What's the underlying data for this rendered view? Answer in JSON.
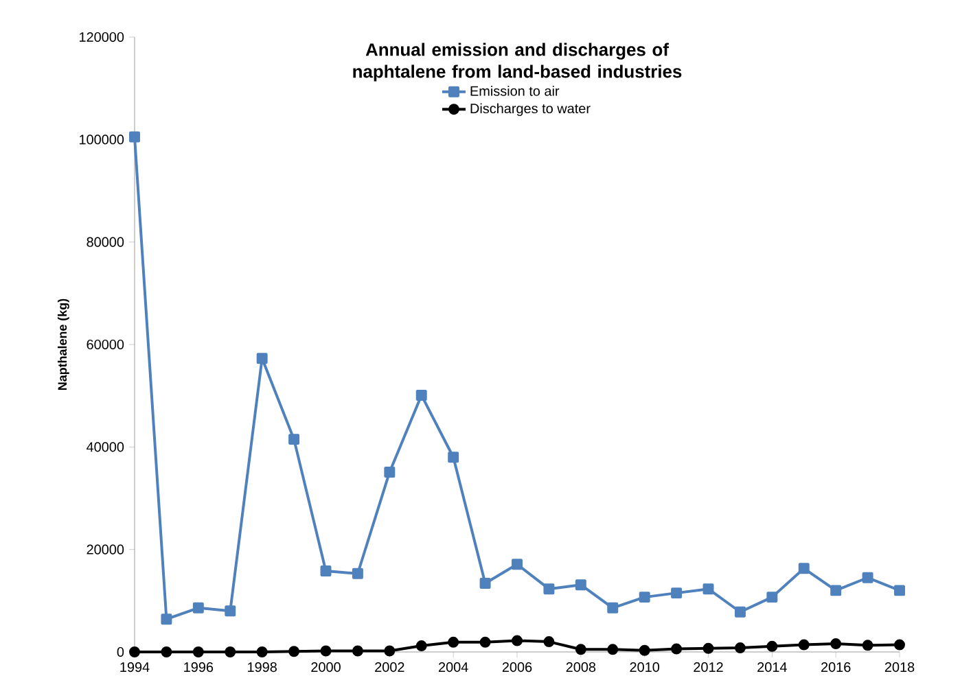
{
  "chart_data": {
    "type": "line",
    "title": "Annual emission and discharges of naphtalene from land-based industries",
    "ylabel": "Napthalene (kg)",
    "x": [
      1994,
      1995,
      1996,
      1997,
      1998,
      1999,
      2000,
      2001,
      2002,
      2003,
      2004,
      2005,
      2006,
      2007,
      2008,
      2009,
      2010,
      2011,
      2012,
      2013,
      2014,
      2015,
      2016,
      2017,
      2018
    ],
    "series": [
      {
        "name": "Emission to air",
        "color": "#4f81bd",
        "marker": "square",
        "values": [
          100500,
          6400,
          8600,
          8000,
          57300,
          41500,
          15800,
          15300,
          35100,
          50100,
          38000,
          13400,
          17100,
          12300,
          13100,
          8600,
          10700,
          11500,
          12300,
          7800,
          10700,
          16300,
          12000,
          14500,
          12000
        ]
      },
      {
        "name": "Discharges to water",
        "color": "#000000",
        "marker": "circle",
        "values": [
          0,
          0,
          0,
          0,
          0,
          100,
          200,
          200,
          200,
          1200,
          1900,
          1900,
          2200,
          2000,
          500,
          500,
          300,
          600,
          700,
          800,
          1100,
          1400,
          1600,
          1300,
          1400
        ]
      }
    ],
    "xlim": [
      1994,
      2018
    ],
    "xticks": [
      1994,
      1996,
      1998,
      2000,
      2002,
      2004,
      2006,
      2008,
      2010,
      2012,
      2014,
      2016,
      2018
    ],
    "ylim": [
      0,
      120000
    ],
    "yticks": [
      0,
      20000,
      40000,
      60000,
      80000,
      100000,
      120000
    ],
    "grid": false,
    "legend": "top",
    "line_style": "solid"
  }
}
